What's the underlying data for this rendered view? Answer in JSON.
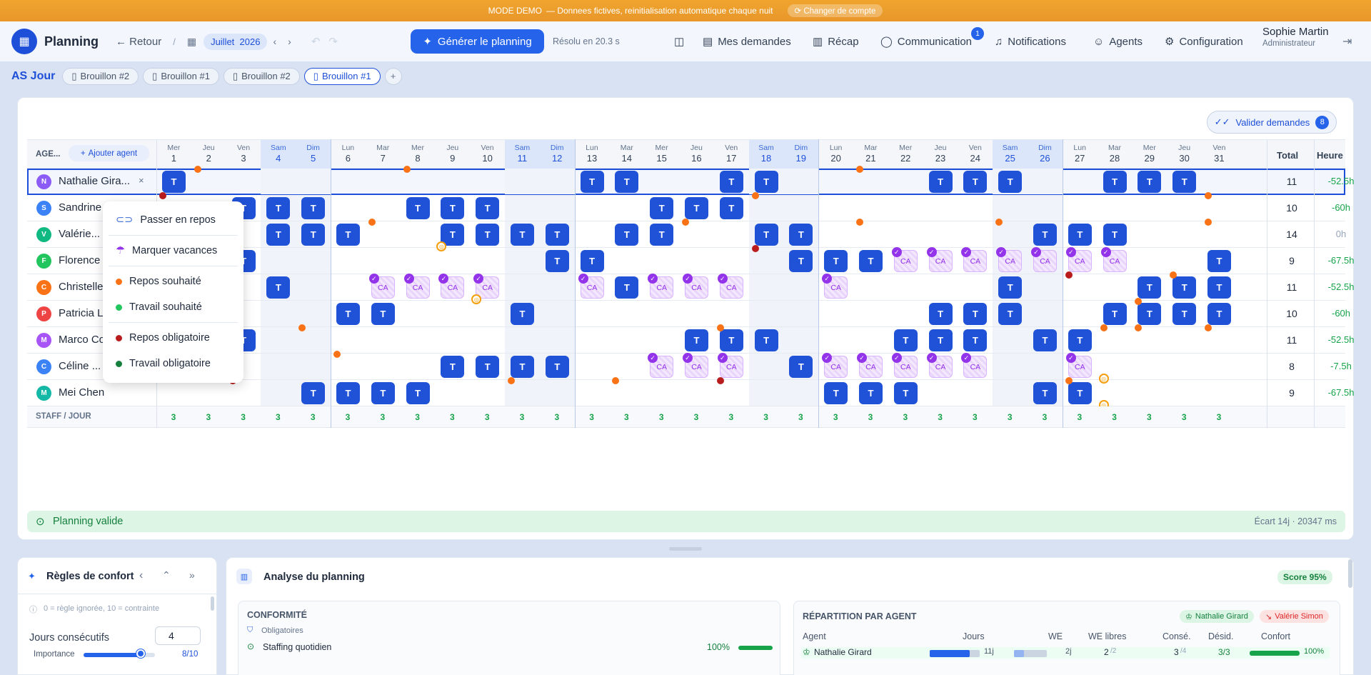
{
  "demo": {
    "mode": "MODE DEMO",
    "text": "— Donnees fictives, reinitialisation automatique chaque nuit",
    "switch": "Changer de compte"
  },
  "header": {
    "title": "Planning",
    "back": "Retour",
    "month": "Juillet",
    "year": "2026",
    "generate": "Générer le planning",
    "solved": "Résolu en 20.3 s",
    "nav": [
      "Mes demandes",
      "Récap",
      "Communication",
      "Notifications",
      "Agents",
      "Configuration"
    ],
    "comm_badge": "1",
    "user_name": "Sophie Martin",
    "user_role": "Administrateur"
  },
  "team": "AS Jour",
  "tabs": [
    "Brouillon #2",
    "Brouillon #1",
    "Brouillon #2",
    "Brouillon #1"
  ],
  "validate": {
    "label": "Valider demandes",
    "count": "8"
  },
  "grid": {
    "agents_header": "AGE...",
    "add_agent": "Ajouter agent",
    "total_header": "Total",
    "hours_header": "Heure",
    "staff_label": "STAFF / JOUR",
    "days": [
      [
        "Mer",
        1
      ],
      [
        "Jeu",
        2
      ],
      [
        "Ven",
        3
      ],
      [
        "Sam",
        4
      ],
      [
        "Dim",
        5
      ],
      [
        "Lun",
        6
      ],
      [
        "Mar",
        7
      ],
      [
        "Mer",
        8
      ],
      [
        "Jeu",
        9
      ],
      [
        "Ven",
        10
      ],
      [
        "Sam",
        11
      ],
      [
        "Dim",
        12
      ],
      [
        "Lun",
        13
      ],
      [
        "Mar",
        14
      ],
      [
        "Mer",
        15
      ],
      [
        "Jeu",
        16
      ],
      [
        "Ven",
        17
      ],
      [
        "Sam",
        18
      ],
      [
        "Dim",
        19
      ],
      [
        "Lun",
        20
      ],
      [
        "Mar",
        21
      ],
      [
        "Mer",
        22
      ],
      [
        "Jeu",
        23
      ],
      [
        "Ven",
        24
      ],
      [
        "Sam",
        25
      ],
      [
        "Dim",
        26
      ],
      [
        "Lun",
        27
      ],
      [
        "Mar",
        28
      ],
      [
        "Mer",
        29
      ],
      [
        "Jeu",
        30
      ],
      [
        "Ven",
        31
      ]
    ],
    "staff": [
      3,
      3,
      3,
      3,
      3,
      3,
      3,
      3,
      3,
      3,
      3,
      3,
      3,
      3,
      3,
      3,
      3,
      3,
      3,
      3,
      3,
      3,
      3,
      3,
      3,
      3,
      3,
      3,
      3,
      3,
      3
    ],
    "agents": [
      {
        "initial": "N",
        "name": "Nathalie Gira...",
        "color": "#8b5cf6",
        "total": "11",
        "hours": "-52.5h",
        "T": [
          1,
          13,
          14,
          17,
          18,
          23,
          24,
          25,
          28,
          29,
          30
        ],
        "CA": [],
        "dots": [
          [
            2,
            "o"
          ],
          [
            8,
            "o"
          ],
          [
            21,
            "o"
          ]
        ]
      },
      {
        "initial": "S",
        "name": "Sandrine",
        "color": "#3b82f6",
        "total": "10",
        "hours": "-60h",
        "T": [
          3,
          4,
          5,
          8,
          9,
          10,
          15,
          16,
          17
        ],
        "CA": [],
        "dots": [
          [
            1,
            "r"
          ],
          [
            18,
            "o"
          ],
          [
            31,
            "o"
          ]
        ]
      },
      {
        "initial": "V",
        "name": "Valérie...",
        "color": "#10b981",
        "total": "14",
        "hours": "0h",
        "T": [
          4,
          5,
          6,
          9,
          10,
          11,
          12,
          14,
          15,
          18,
          19,
          26,
          27,
          28
        ],
        "CA": [],
        "dots": [
          [
            7,
            "o"
          ],
          [
            16,
            "o"
          ],
          [
            21,
            "o"
          ],
          [
            25,
            "o"
          ],
          [
            31,
            "o"
          ]
        ],
        "rings": [
          9
        ]
      },
      {
        "initial": "F",
        "name": "Florence",
        "color": "#22c55e",
        "total": "9",
        "hours": "-67.5h",
        "T": [
          3,
          12,
          13,
          19,
          20,
          21,
          31
        ],
        "CA": [
          22,
          23,
          24,
          25,
          26,
          27,
          28
        ],
        "dots": [
          [
            18,
            "r"
          ]
        ]
      },
      {
        "initial": "C",
        "name": "Christelle",
        "color": "#f97316",
        "total": "11",
        "hours": "-52.5h",
        "T": [
          4,
          14,
          25,
          29,
          30,
          31
        ],
        "CA": [
          7,
          8,
          9,
          10,
          13,
          15,
          16,
          17,
          20
        ],
        "dots": [
          [
            27,
            "r"
          ],
          [
            30,
            "o"
          ]
        ],
        "rings": [
          10
        ]
      },
      {
        "initial": "P",
        "name": "Patricia L",
        "color": "#ef4444",
        "total": "10",
        "hours": "-60h",
        "T": [
          6,
          7,
          11,
          23,
          24,
          25,
          28,
          29,
          30,
          31
        ],
        "CA": [],
        "dots": [
          [
            29,
            "o"
          ]
        ]
      },
      {
        "initial": "M",
        "name": "Marco Co",
        "color": "#a855f7",
        "total": "11",
        "hours": "-52.5h",
        "T": [
          3,
          16,
          17,
          18,
          22,
          23,
          24,
          26,
          27
        ],
        "CA": [],
        "dots": [
          [
            5,
            "o"
          ],
          [
            17,
            "o"
          ],
          [
            28,
            "o"
          ],
          [
            29,
            "o"
          ],
          [
            31,
            "o"
          ]
        ]
      },
      {
        "initial": "C",
        "name": "Céline ...",
        "color": "#3b82f6",
        "total": "8",
        "hours": "-7.5h",
        "T": [
          9,
          10,
          11,
          12,
          19
        ],
        "CA": [
          15,
          16,
          17,
          20,
          21,
          22,
          23,
          24,
          27
        ],
        "dots": [
          [
            6,
            "o"
          ]
        ],
        "rings": [
          28
        ]
      },
      {
        "initial": "M",
        "name": "Mei Chen",
        "color": "#14b8a6",
        "total": "9",
        "hours": "-67.5h",
        "T": [
          5,
          6,
          7,
          8,
          20,
          21,
          22,
          26,
          27
        ],
        "CA": [],
        "dots": [
          [
            3,
            "r"
          ],
          [
            11,
            "o"
          ],
          [
            14,
            "o"
          ],
          [
            17,
            "r"
          ],
          [
            27,
            "o"
          ]
        ],
        "rings": [
          28
        ]
      }
    ]
  },
  "context_menu": {
    "items": [
      "Passer en repos",
      "Marquer vacances",
      "Repos souhaité",
      "Travail souhaité",
      "Repos obligatoire",
      "Travail obligatoire"
    ],
    "colors": [
      "#f97316",
      "#22c55e",
      "#b91c1c",
      "#15803d"
    ]
  },
  "status": {
    "text": "Planning valide",
    "meta": "Écart 14j · 20347 ms"
  },
  "comfort": {
    "title": "Règles de confort",
    "hint": "0 = règle ignorée, 10 = contrainte",
    "rule": "Jours consécutifs",
    "rule_value": "4",
    "importance": "Importance",
    "importance_value": "8/10",
    "importance_fraction": 0.8
  },
  "analysis": {
    "title": "Analyse du planning",
    "score": "Score 95%",
    "conformity": "CONFORMITÉ",
    "mandatory": "Obligatoires",
    "staffing": "Staffing quotidien",
    "staffing_pct": "100%",
    "staffing_fraction": 1.0,
    "repartition": "RÉPARTITION PAR AGENT",
    "best": "Nathalie Girard",
    "worst": "Valérie Simon",
    "cols": [
      "Agent",
      "Jours",
      "WE",
      "WE libres",
      "Consé.",
      "Désid.",
      "Confort"
    ],
    "row": {
      "agent": "Nathalie Girard",
      "jours": "11j",
      "we": "2j",
      "we_libres": "2",
      "we_libres_of": "/2",
      "conse": "3",
      "conse_of": "/4",
      "desid": "3/3",
      "confort": "100%"
    }
  }
}
